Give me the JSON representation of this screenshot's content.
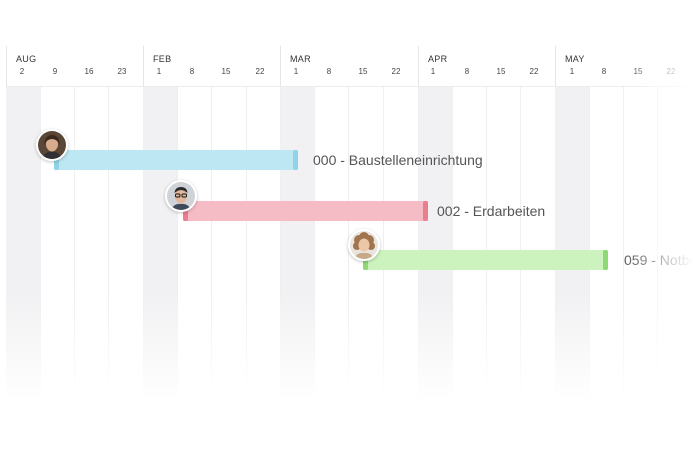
{
  "timeline": {
    "months": [
      {
        "name": "AUG",
        "weeks": [
          "2",
          "9",
          "16",
          "23"
        ]
      },
      {
        "name": "FEB",
        "weeks": [
          "1",
          "8",
          "15",
          "22"
        ]
      },
      {
        "name": "MAR",
        "weeks": [
          "1",
          "8",
          "15",
          "22"
        ]
      },
      {
        "name": "APR",
        "weeks": [
          "1",
          "8",
          "15",
          "22"
        ]
      },
      {
        "name": "MAY",
        "weeks": [
          "1",
          "8",
          "15",
          "22"
        ]
      }
    ]
  },
  "tasks": [
    {
      "label": "000 - Baustelleneinrichtung",
      "color": "#bde7f2",
      "cap_color": "#8fd3e6",
      "avatar": "woman-avatar",
      "start_week": 1,
      "end_week": 8
    },
    {
      "label": "002 - Erdarbeiten",
      "color": "#f5bcc6",
      "cap_color": "#ea7d8f",
      "avatar": "man-glasses-avatar",
      "start_week": 5,
      "end_week": 12
    },
    {
      "label": "059 - Notbe",
      "color": "#ccf2be",
      "cap_color": "#8ed876",
      "avatar": "curly-hair-avatar",
      "start_week": 10,
      "end_week": 17
    }
  ]
}
